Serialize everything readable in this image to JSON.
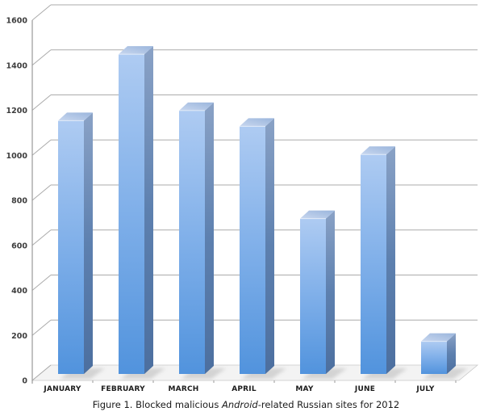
{
  "chart_data": {
    "type": "bar",
    "style": "3d-column",
    "title": "",
    "categories": [
      "JANUARY",
      "FEBRUARY",
      "MARCH",
      "APRIL",
      "MAY",
      "JUNE",
      "JULY"
    ],
    "values": [
      1125,
      1420,
      1170,
      1100,
      690,
      975,
      145
    ],
    "xlabel": "",
    "ylabel": "",
    "ylim": [
      0,
      1600
    ],
    "yticks": [
      0,
      200,
      400,
      600,
      800,
      1000,
      1200,
      1400,
      1600
    ],
    "grid": true,
    "legend": false,
    "colors": {
      "bar_front": [
        "#AECBF2",
        "#7FAFE9",
        "#5193DD"
      ],
      "bar_side": [
        "#8AA2C6",
        "#5D80AF",
        "#4C6F9F"
      ],
      "bar_top": [
        "#C8D7EF",
        "#9AB5DC"
      ],
      "bar_top_edge": "rgba(255,255,255,0.55)",
      "gridline": "#ABABAB",
      "axis": "#9A9A9A",
      "floor_fill": "#F3F3F3",
      "floor_stroke": "#C9C9C9",
      "shadow": "#B9B9B9",
      "axis_label": "#3D3D3D",
      "category_label": "#1C1C1C",
      "background": "#FFFFFF"
    },
    "caption": {
      "prefix": "Figure 1. Blocked malicious ",
      "italic": "Android",
      "suffix": "-related Russian sites for 2012"
    }
  }
}
